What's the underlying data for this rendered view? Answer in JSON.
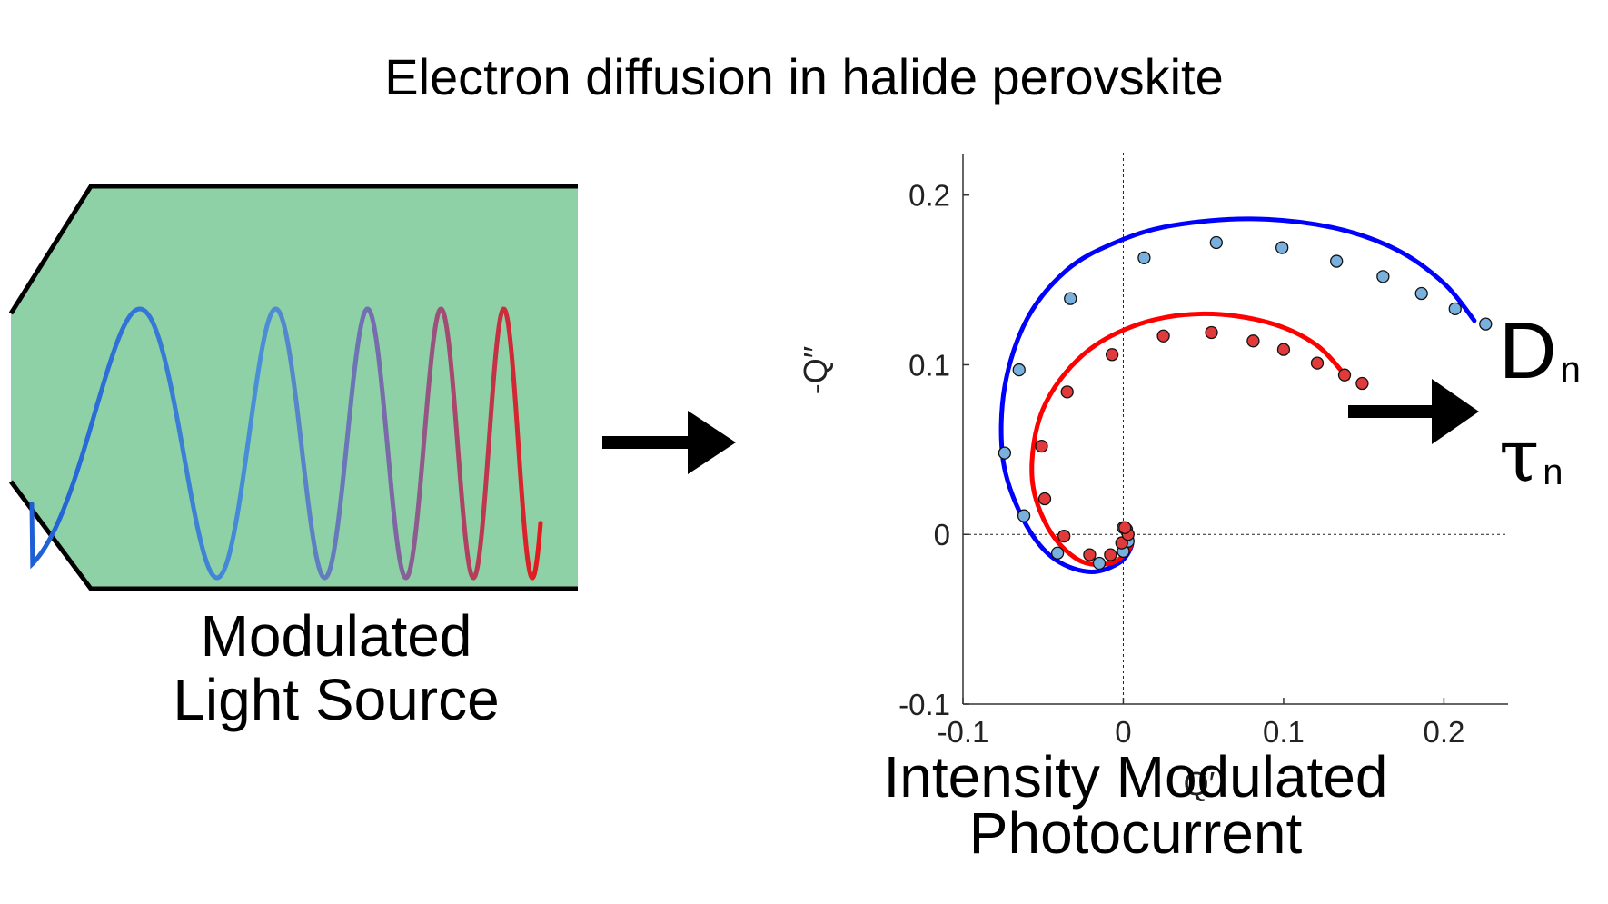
{
  "title": "Electron diffusion in halide perovskite",
  "light_source": {
    "label_line1": "Modulated",
    "label_line2": "Light Source",
    "fill_color": "#8ed1a6",
    "wave_color_start": "#1f5fd6",
    "wave_color_end": "#e41a1c"
  },
  "imps": {
    "label_line1": "Intensity Modulated",
    "label_line2": "Photocurrent"
  },
  "outputs": {
    "diffusion_symbol": "D",
    "diffusion_sub": "n",
    "lifetime_symbol": "τ",
    "lifetime_sub": "n"
  },
  "chart_data": {
    "type": "scatter",
    "xlabel": "Q′",
    "ylabel": "-Q′′",
    "xlim": [
      -0.1,
      0.24
    ],
    "ylim": [
      -0.1,
      0.24
    ],
    "x_ticks": [
      -0.1,
      0,
      0.1,
      0.2
    ],
    "x_tick_labels": [
      "-0.1",
      "0",
      "0.1",
      "0.2"
    ],
    "y_ticks": [
      -0.1,
      0,
      0.1,
      0.2
    ],
    "y_tick_labels": [
      "-0.1",
      "0",
      "0.1",
      "0.2"
    ],
    "series": [
      {
        "color": "#0000ff",
        "marker_color": "#7ab0de",
        "points": [
          [
            0.226,
            0.124
          ],
          [
            0.207,
            0.133
          ],
          [
            0.186,
            0.142
          ],
          [
            0.162,
            0.152
          ],
          [
            0.133,
            0.161
          ],
          [
            0.099,
            0.169
          ],
          [
            0.058,
            0.172
          ],
          [
            0.013,
            0.163
          ],
          [
            -0.033,
            0.139
          ],
          [
            -0.065,
            0.097
          ],
          [
            -0.074,
            0.048
          ],
          [
            -0.062,
            0.011
          ],
          [
            -0.041,
            -0.011
          ],
          [
            -0.015,
            -0.017
          ],
          [
            0.0,
            -0.01
          ],
          [
            0.003,
            -0.004
          ],
          [
            0.002,
            0.003
          ],
          [
            0.0,
            0.004
          ]
        ],
        "fit": [
          [
            0.219,
            0.126
          ],
          [
            0.2,
            0.148
          ],
          [
            0.17,
            0.168
          ],
          [
            0.13,
            0.181
          ],
          [
            0.08,
            0.186
          ],
          [
            0.03,
            0.182
          ],
          [
            -0.005,
            0.172
          ],
          [
            -0.035,
            0.156
          ],
          [
            -0.06,
            0.127
          ],
          [
            -0.074,
            0.087
          ],
          [
            -0.075,
            0.044
          ],
          [
            -0.063,
            0.01
          ],
          [
            -0.045,
            -0.013
          ],
          [
            -0.022,
            -0.022
          ],
          [
            -0.003,
            -0.017
          ],
          [
            0.005,
            -0.007
          ],
          [
            0.004,
            0.002
          ],
          [
            0.0,
            0.004
          ]
        ]
      },
      {
        "color": "#ff0000",
        "marker_color": "#e03a3a",
        "points": [
          [
            0.149,
            0.089
          ],
          [
            0.138,
            0.094
          ],
          [
            0.121,
            0.101
          ],
          [
            0.1,
            0.109
          ],
          [
            0.081,
            0.114
          ],
          [
            0.055,
            0.119
          ],
          [
            0.025,
            0.117
          ],
          [
            -0.007,
            0.106
          ],
          [
            -0.035,
            0.084
          ],
          [
            -0.051,
            0.052
          ],
          [
            -0.049,
            0.021
          ],
          [
            -0.037,
            -0.001
          ],
          [
            -0.021,
            -0.012
          ],
          [
            -0.008,
            -0.012
          ],
          [
            -0.001,
            -0.005
          ],
          [
            0.003,
            0.0
          ],
          [
            0.001,
            0.004
          ]
        ],
        "fit": [
          [
            0.14,
            0.092
          ],
          [
            0.12,
            0.112
          ],
          [
            0.09,
            0.125
          ],
          [
            0.05,
            0.13
          ],
          [
            0.01,
            0.124
          ],
          [
            -0.025,
            0.106
          ],
          [
            -0.05,
            0.074
          ],
          [
            -0.057,
            0.035
          ],
          [
            -0.047,
            0.004
          ],
          [
            -0.028,
            -0.015
          ],
          [
            -0.008,
            -0.017
          ],
          [
            0.004,
            -0.008
          ],
          [
            0.004,
            0.001
          ],
          [
            0.0,
            0.004
          ]
        ]
      }
    ]
  }
}
